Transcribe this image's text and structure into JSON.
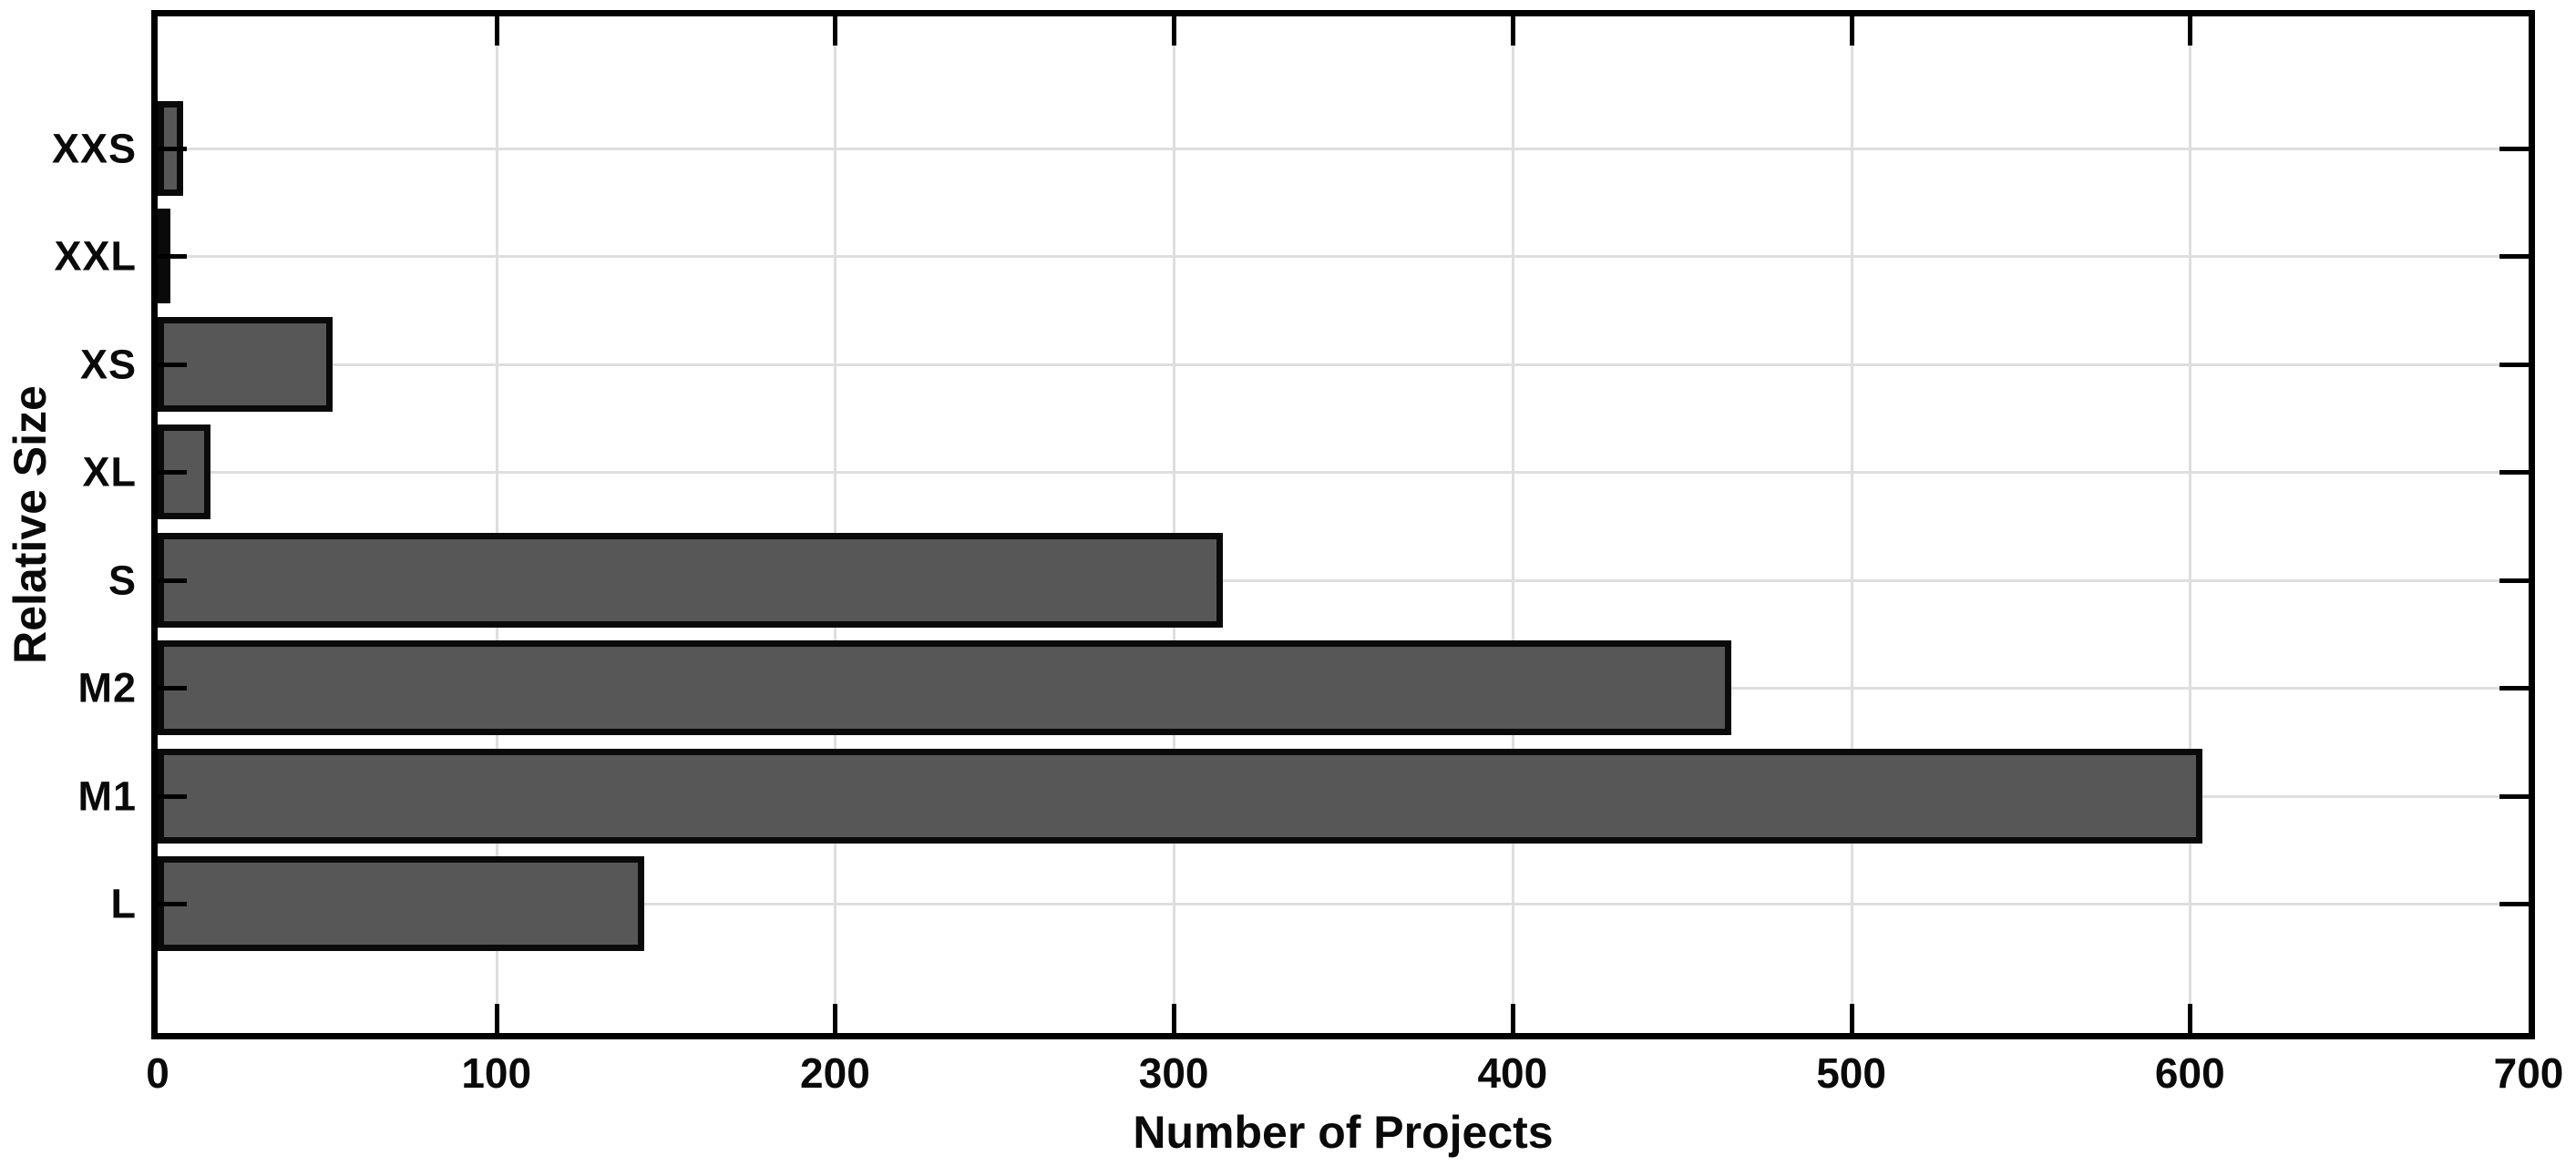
{
  "chart_data": {
    "type": "bar",
    "orientation": "horizontal",
    "title": "",
    "categories": [
      "XXS",
      "XXL",
      "XS",
      "XL",
      "S",
      "M2",
      "M1",
      "L"
    ],
    "values": [
      6,
      2,
      50,
      14,
      313,
      463,
      602,
      142
    ],
    "xlabel": "Number of Projects",
    "ylabel": "Relative Size",
    "xlim": [
      0,
      700
    ],
    "xticks": [
      0,
      100,
      200,
      300,
      400,
      500,
      600,
      700
    ],
    "grid": true,
    "legend": "none",
    "bar_color": "#575757",
    "bar_edge_color": "#0a0a0a",
    "gridline_color": "#dedede",
    "axis_color": "#000000",
    "background_color": "#ffffff"
  }
}
